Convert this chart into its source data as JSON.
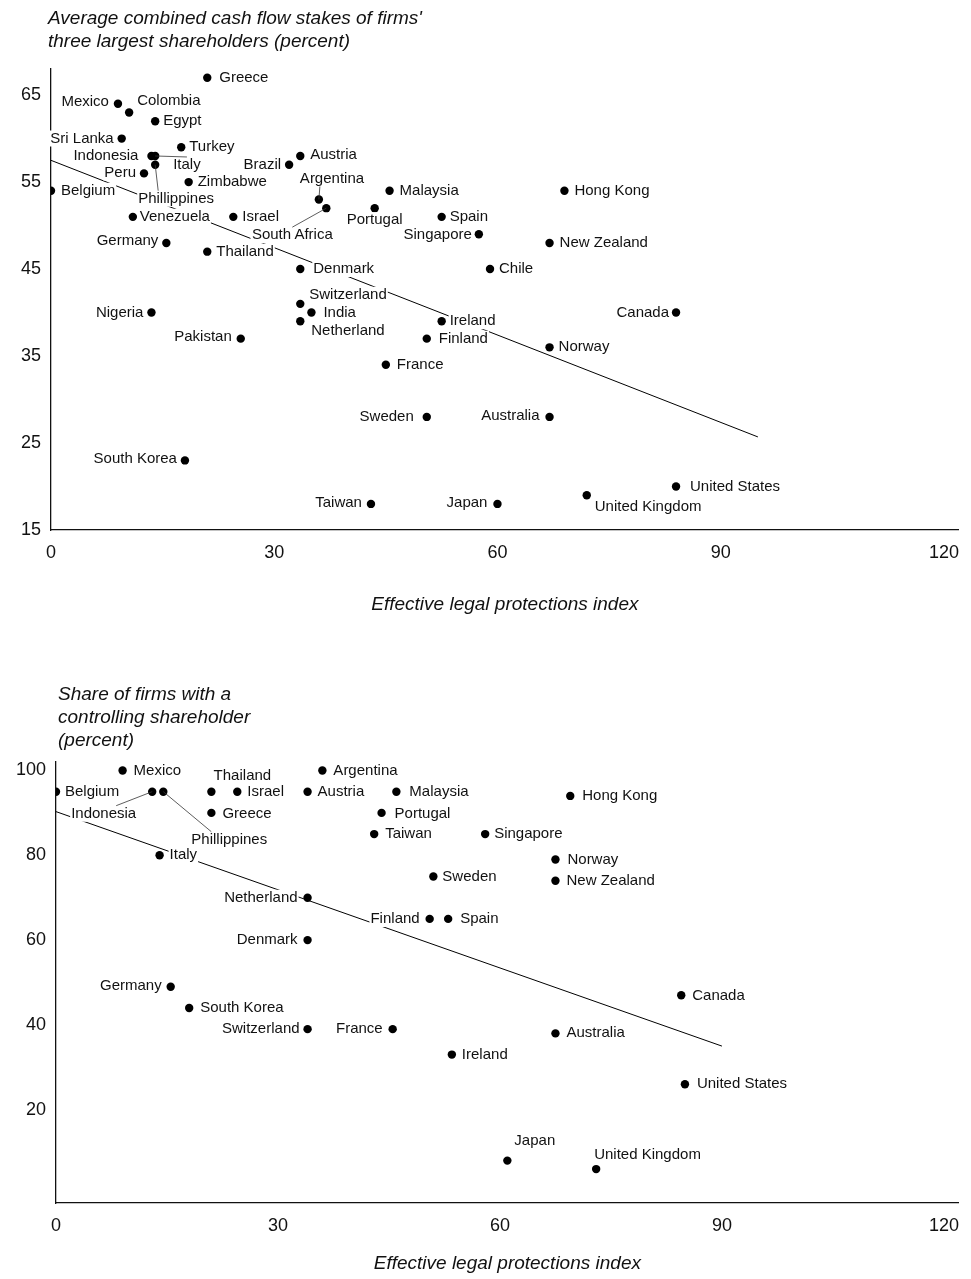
{
  "chart_data": [
    {
      "type": "scatter",
      "ylabel": "Average combined cash flow stakes of firms' three largest shareholders (percent)",
      "xlabel": "Effective legal protections index",
      "xlim": [
        0,
        122
      ],
      "xticks": [
        0,
        30,
        60,
        90,
        120
      ],
      "ylim": [
        15,
        68
      ],
      "yticks": [
        15,
        25,
        35,
        45,
        55,
        65
      ],
      "grid": false,
      "legend": false,
      "marker": "circle",
      "series": [
        {
          "type": "scatter",
          "color": "#000000",
          "x": [
            21,
            9,
            10.5,
            14,
            9.5,
            17.5,
            13.5,
            14,
            14,
            12.5,
            18.5,
            32,
            33.5,
            36,
            37,
            45.5,
            43.5,
            52.5,
            57.5,
            69,
            67,
            59,
            0,
            11,
            24.5,
            15.5,
            21,
            33.5,
            33.5,
            35,
            33.5,
            52.5,
            50.5,
            13.5,
            25.5,
            84,
            67,
            45,
            50.5,
            67,
            18,
            43,
            60,
            72,
            84
          ],
          "values": [
            67,
            64,
            63,
            62,
            60,
            59,
            58,
            58,
            57,
            56,
            55,
            57,
            58,
            53,
            52,
            54,
            52,
            51,
            49,
            54,
            48,
            45,
            54,
            51,
            51,
            48,
            47,
            45,
            41,
            40,
            39,
            39,
            37,
            40,
            37,
            40,
            36,
            34,
            28,
            28,
            23,
            18,
            18,
            19,
            20
          ]
        },
        {
          "type": "line",
          "color": "#000000",
          "marker": "none",
          "x": [
            0,
            95
          ],
          "values": [
            57.5,
            25.7
          ]
        }
      ],
      "annotations": [
        {
          "text": "Greece",
          "x": 21,
          "y": 67
        },
        {
          "text": "Mexico",
          "x": 9,
          "y": 64
        },
        {
          "text": "Colombia",
          "x": 10.5,
          "y": 63
        },
        {
          "text": "Egypt",
          "x": 14,
          "y": 62
        },
        {
          "text": "Sri Lanka",
          "x": 9.5,
          "y": 60
        },
        {
          "text": "Turkey",
          "x": 17.5,
          "y": 59
        },
        {
          "text": "Indonesia",
          "x": 13.5,
          "y": 58
        },
        {
          "text": "Italy",
          "x": 14,
          "y": 58
        },
        {
          "text": "Phillippines",
          "x": 14,
          "y": 57
        },
        {
          "text": "Peru",
          "x": 12.5,
          "y": 56
        },
        {
          "text": "Zimbabwe",
          "x": 18.5,
          "y": 55
        },
        {
          "text": "Brazil",
          "x": 32,
          "y": 57
        },
        {
          "text": "Austria",
          "x": 33.5,
          "y": 58
        },
        {
          "text": "Argentina",
          "x": 36,
          "y": 53
        },
        {
          "text": "South Africa",
          "x": 37,
          "y": 52
        },
        {
          "text": "Malaysia",
          "x": 45.5,
          "y": 54
        },
        {
          "text": "Portugal",
          "x": 43.5,
          "y": 52
        },
        {
          "text": "Spain",
          "x": 52.5,
          "y": 51
        },
        {
          "text": "Singapore",
          "x": 57.5,
          "y": 49
        },
        {
          "text": "Hong Kong",
          "x": 69,
          "y": 54
        },
        {
          "text": "New Zealand",
          "x": 67,
          "y": 48
        },
        {
          "text": "Chile",
          "x": 59,
          "y": 45
        },
        {
          "text": "Belgium",
          "x": 0,
          "y": 54
        },
        {
          "text": "Venezuela",
          "x": 11,
          "y": 51
        },
        {
          "text": "Israel",
          "x": 24.5,
          "y": 51
        },
        {
          "text": "Germany",
          "x": 15.5,
          "y": 48
        },
        {
          "text": "Thailand",
          "x": 21,
          "y": 47
        },
        {
          "text": "Denmark",
          "x": 33.5,
          "y": 45
        },
        {
          "text": "Switzerland",
          "x": 33.5,
          "y": 41
        },
        {
          "text": "India",
          "x": 35,
          "y": 40
        },
        {
          "text": "Netherland",
          "x": 33.5,
          "y": 39
        },
        {
          "text": "Ireland",
          "x": 52.5,
          "y": 39
        },
        {
          "text": "Finland",
          "x": 50.5,
          "y": 37
        },
        {
          "text": "Nigeria",
          "x": 13.5,
          "y": 40
        },
        {
          "text": "Pakistan",
          "x": 25.5,
          "y": 37
        },
        {
          "text": "Canada",
          "x": 84,
          "y": 40
        },
        {
          "text": "Norway",
          "x": 67,
          "y": 36
        },
        {
          "text": "France",
          "x": 45,
          "y": 34
        },
        {
          "text": "Sweden",
          "x": 50.5,
          "y": 28
        },
        {
          "text": "Australia",
          "x": 67,
          "y": 28
        },
        {
          "text": "South Korea",
          "x": 18,
          "y": 23
        },
        {
          "text": "Taiwan",
          "x": 43,
          "y": 18
        },
        {
          "text": "Japan",
          "x": 60,
          "y": 18
        },
        {
          "text": "United Kingdom",
          "x": 72,
          "y": 19
        },
        {
          "text": "United States",
          "x": 84,
          "y": 20
        }
      ]
    },
    {
      "type": "scatter",
      "ylabel": "Share of firms with a controlling shareholder (percent)",
      "xlabel": "Effective legal protections index",
      "xlim": [
        0,
        122
      ],
      "xticks": [
        0,
        30,
        60,
        90,
        120
      ],
      "ylim": [
        -2,
        102
      ],
      "yticks": [
        20,
        40,
        60,
        80,
        100
      ],
      "grid": false,
      "legend": false,
      "marker": "circle",
      "series": [
        {
          "type": "scatter",
          "color": "#000000",
          "x": [
            9,
            0,
            13,
            14.5,
            21,
            24.5,
            34,
            36,
            46,
            21,
            44,
            43,
            58,
            69.5,
            67.5,
            67.5,
            51,
            14,
            34,
            50.5,
            53,
            34,
            15.5,
            18,
            34,
            45.5,
            84.5,
            67.5,
            53.5,
            85,
            61,
            73
          ],
          "values": [
            100,
            95,
            95,
            95,
            95,
            95,
            95,
            100,
            95,
            90,
            90,
            85,
            85,
            94,
            79,
            74,
            75,
            80,
            70,
            65,
            65,
            60,
            49,
            44,
            39,
            39,
            47,
            38,
            33,
            26,
            8,
            6
          ]
        },
        {
          "type": "line",
          "color": "#000000",
          "marker": "none",
          "x": [
            0,
            90
          ],
          "values": [
            90.3,
            35
          ]
        }
      ],
      "annotations": [
        {
          "text": "Mexico",
          "x": 9,
          "y": 100
        },
        {
          "text": "Belgium",
          "x": 0,
          "y": 95
        },
        {
          "text": "Indonesia",
          "x": 13,
          "y": 95
        },
        {
          "text": "Phillippines",
          "x": 14.5,
          "y": 95
        },
        {
          "text": "Thailand",
          "x": 21,
          "y": 95
        },
        {
          "text": "Israel",
          "x": 24.5,
          "y": 95
        },
        {
          "text": "Austria",
          "x": 34,
          "y": 95
        },
        {
          "text": "Argentina",
          "x": 36,
          "y": 100
        },
        {
          "text": "Malaysia",
          "x": 46,
          "y": 95
        },
        {
          "text": "Greece",
          "x": 21,
          "y": 90
        },
        {
          "text": "Portugal",
          "x": 44,
          "y": 90
        },
        {
          "text": "Taiwan",
          "x": 43,
          "y": 85
        },
        {
          "text": "Singapore",
          "x": 58,
          "y": 85
        },
        {
          "text": "Hong Kong",
          "x": 69.5,
          "y": 94
        },
        {
          "text": "Norway",
          "x": 67.5,
          "y": 79
        },
        {
          "text": "New Zealand",
          "x": 67.5,
          "y": 74
        },
        {
          "text": "Sweden",
          "x": 51,
          "y": 75
        },
        {
          "text": "Italy",
          "x": 14,
          "y": 80
        },
        {
          "text": "Netherland",
          "x": 34,
          "y": 70
        },
        {
          "text": "Finland",
          "x": 50.5,
          "y": 65
        },
        {
          "text": "Spain",
          "x": 53,
          "y": 65
        },
        {
          "text": "Denmark",
          "x": 34,
          "y": 60
        },
        {
          "text": "Germany",
          "x": 15.5,
          "y": 49
        },
        {
          "text": "South Korea",
          "x": 18,
          "y": 44
        },
        {
          "text": "Switzerland",
          "x": 34,
          "y": 39
        },
        {
          "text": "France",
          "x": 45.5,
          "y": 39
        },
        {
          "text": "Canada",
          "x": 84.5,
          "y": 47
        },
        {
          "text": "Australia",
          "x": 67.5,
          "y": 38
        },
        {
          "text": "Ireland",
          "x": 53.5,
          "y": 33
        },
        {
          "text": "United States",
          "x": 85,
          "y": 26
        },
        {
          "text": "Japan",
          "x": 61,
          "y": 8
        },
        {
          "text": "United Kingdom",
          "x": 73,
          "y": 6
        }
      ]
    }
  ]
}
